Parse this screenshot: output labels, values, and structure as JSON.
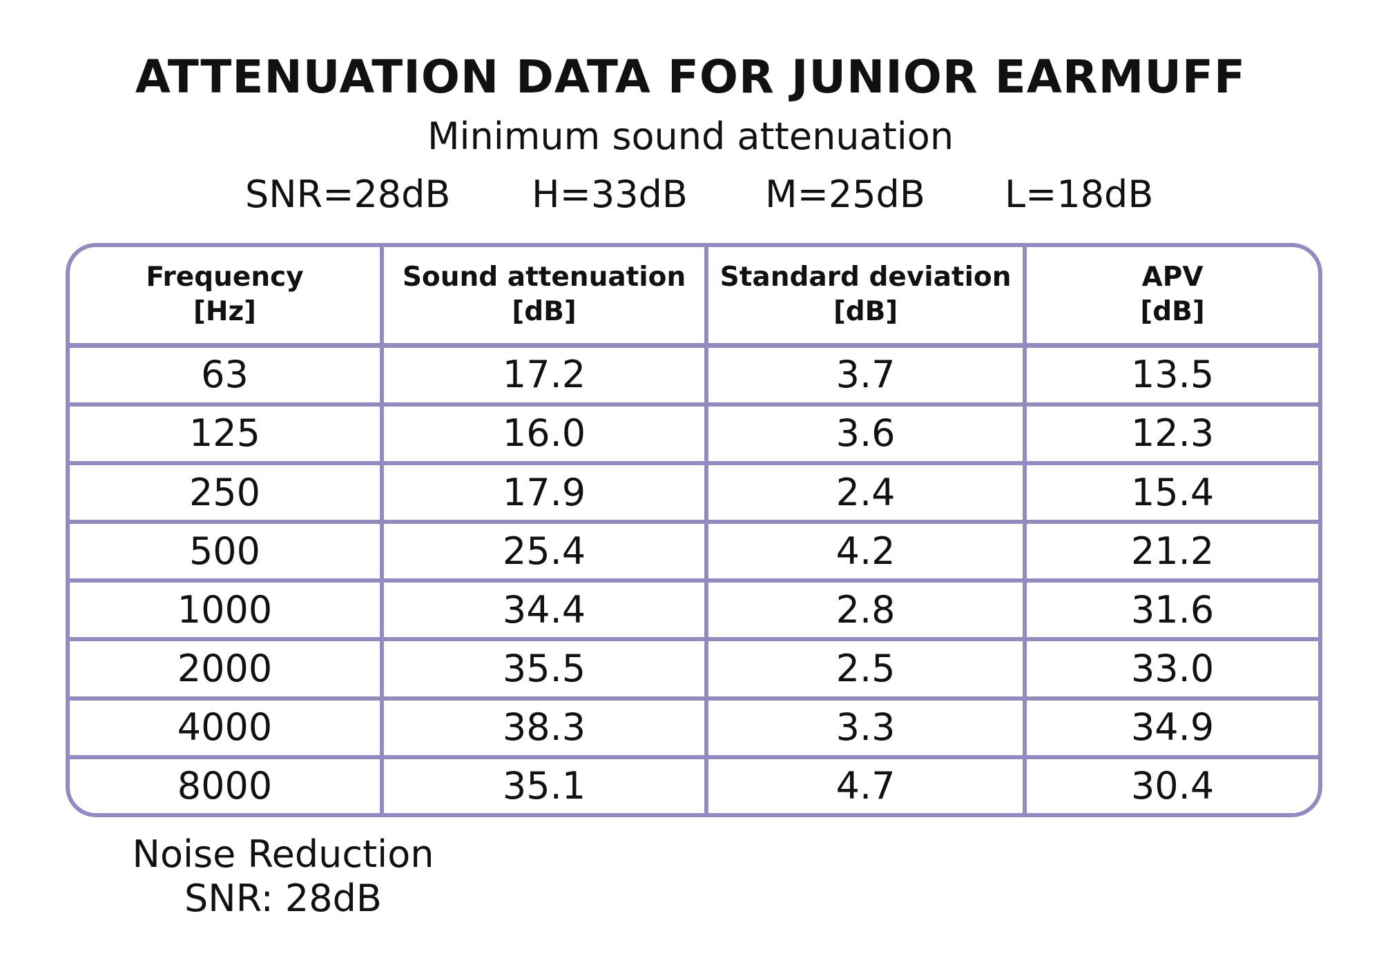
{
  "title": "ATTENUATION DATA FOR JUNIOR EARMUFF",
  "subtitle": "Minimum sound attenuation",
  "ratings": {
    "snr": "SNR=28dB",
    "h": "H=33dB",
    "m": "M=25dB",
    "l": "L=18dB"
  },
  "table": {
    "headers": [
      {
        "name": "Frequency",
        "unit": "[Hz]"
      },
      {
        "name": "Sound attenuation",
        "unit": "[dB]"
      },
      {
        "name": "Standard deviation",
        "unit": "[dB]"
      },
      {
        "name": "APV",
        "unit": "[dB]"
      }
    ]
  },
  "footer": {
    "line1": "Noise Reduction",
    "line2": "SNR: 28dB"
  },
  "colors": {
    "border": "#9589c2",
    "text": "#111111",
    "background": "#ffffff"
  },
  "chart_data": {
    "type": "table",
    "columns": [
      "Frequency [Hz]",
      "Sound attenuation [dB]",
      "Standard deviation [dB]",
      "APV [dB]"
    ],
    "rows": [
      [
        "63",
        "17.2",
        "3.7",
        "13.5"
      ],
      [
        "125",
        "16.0",
        "3.6",
        "12.3"
      ],
      [
        "250",
        "17.9",
        "2.4",
        "15.4"
      ],
      [
        "500",
        "25.4",
        "4.2",
        "21.2"
      ],
      [
        "1000",
        "34.4",
        "2.8",
        "31.6"
      ],
      [
        "2000",
        "35.5",
        "2.5",
        "33.0"
      ],
      [
        "4000",
        "38.3",
        "3.3",
        "34.9"
      ],
      [
        "8000",
        "35.1",
        "4.7",
        "30.4"
      ]
    ]
  }
}
